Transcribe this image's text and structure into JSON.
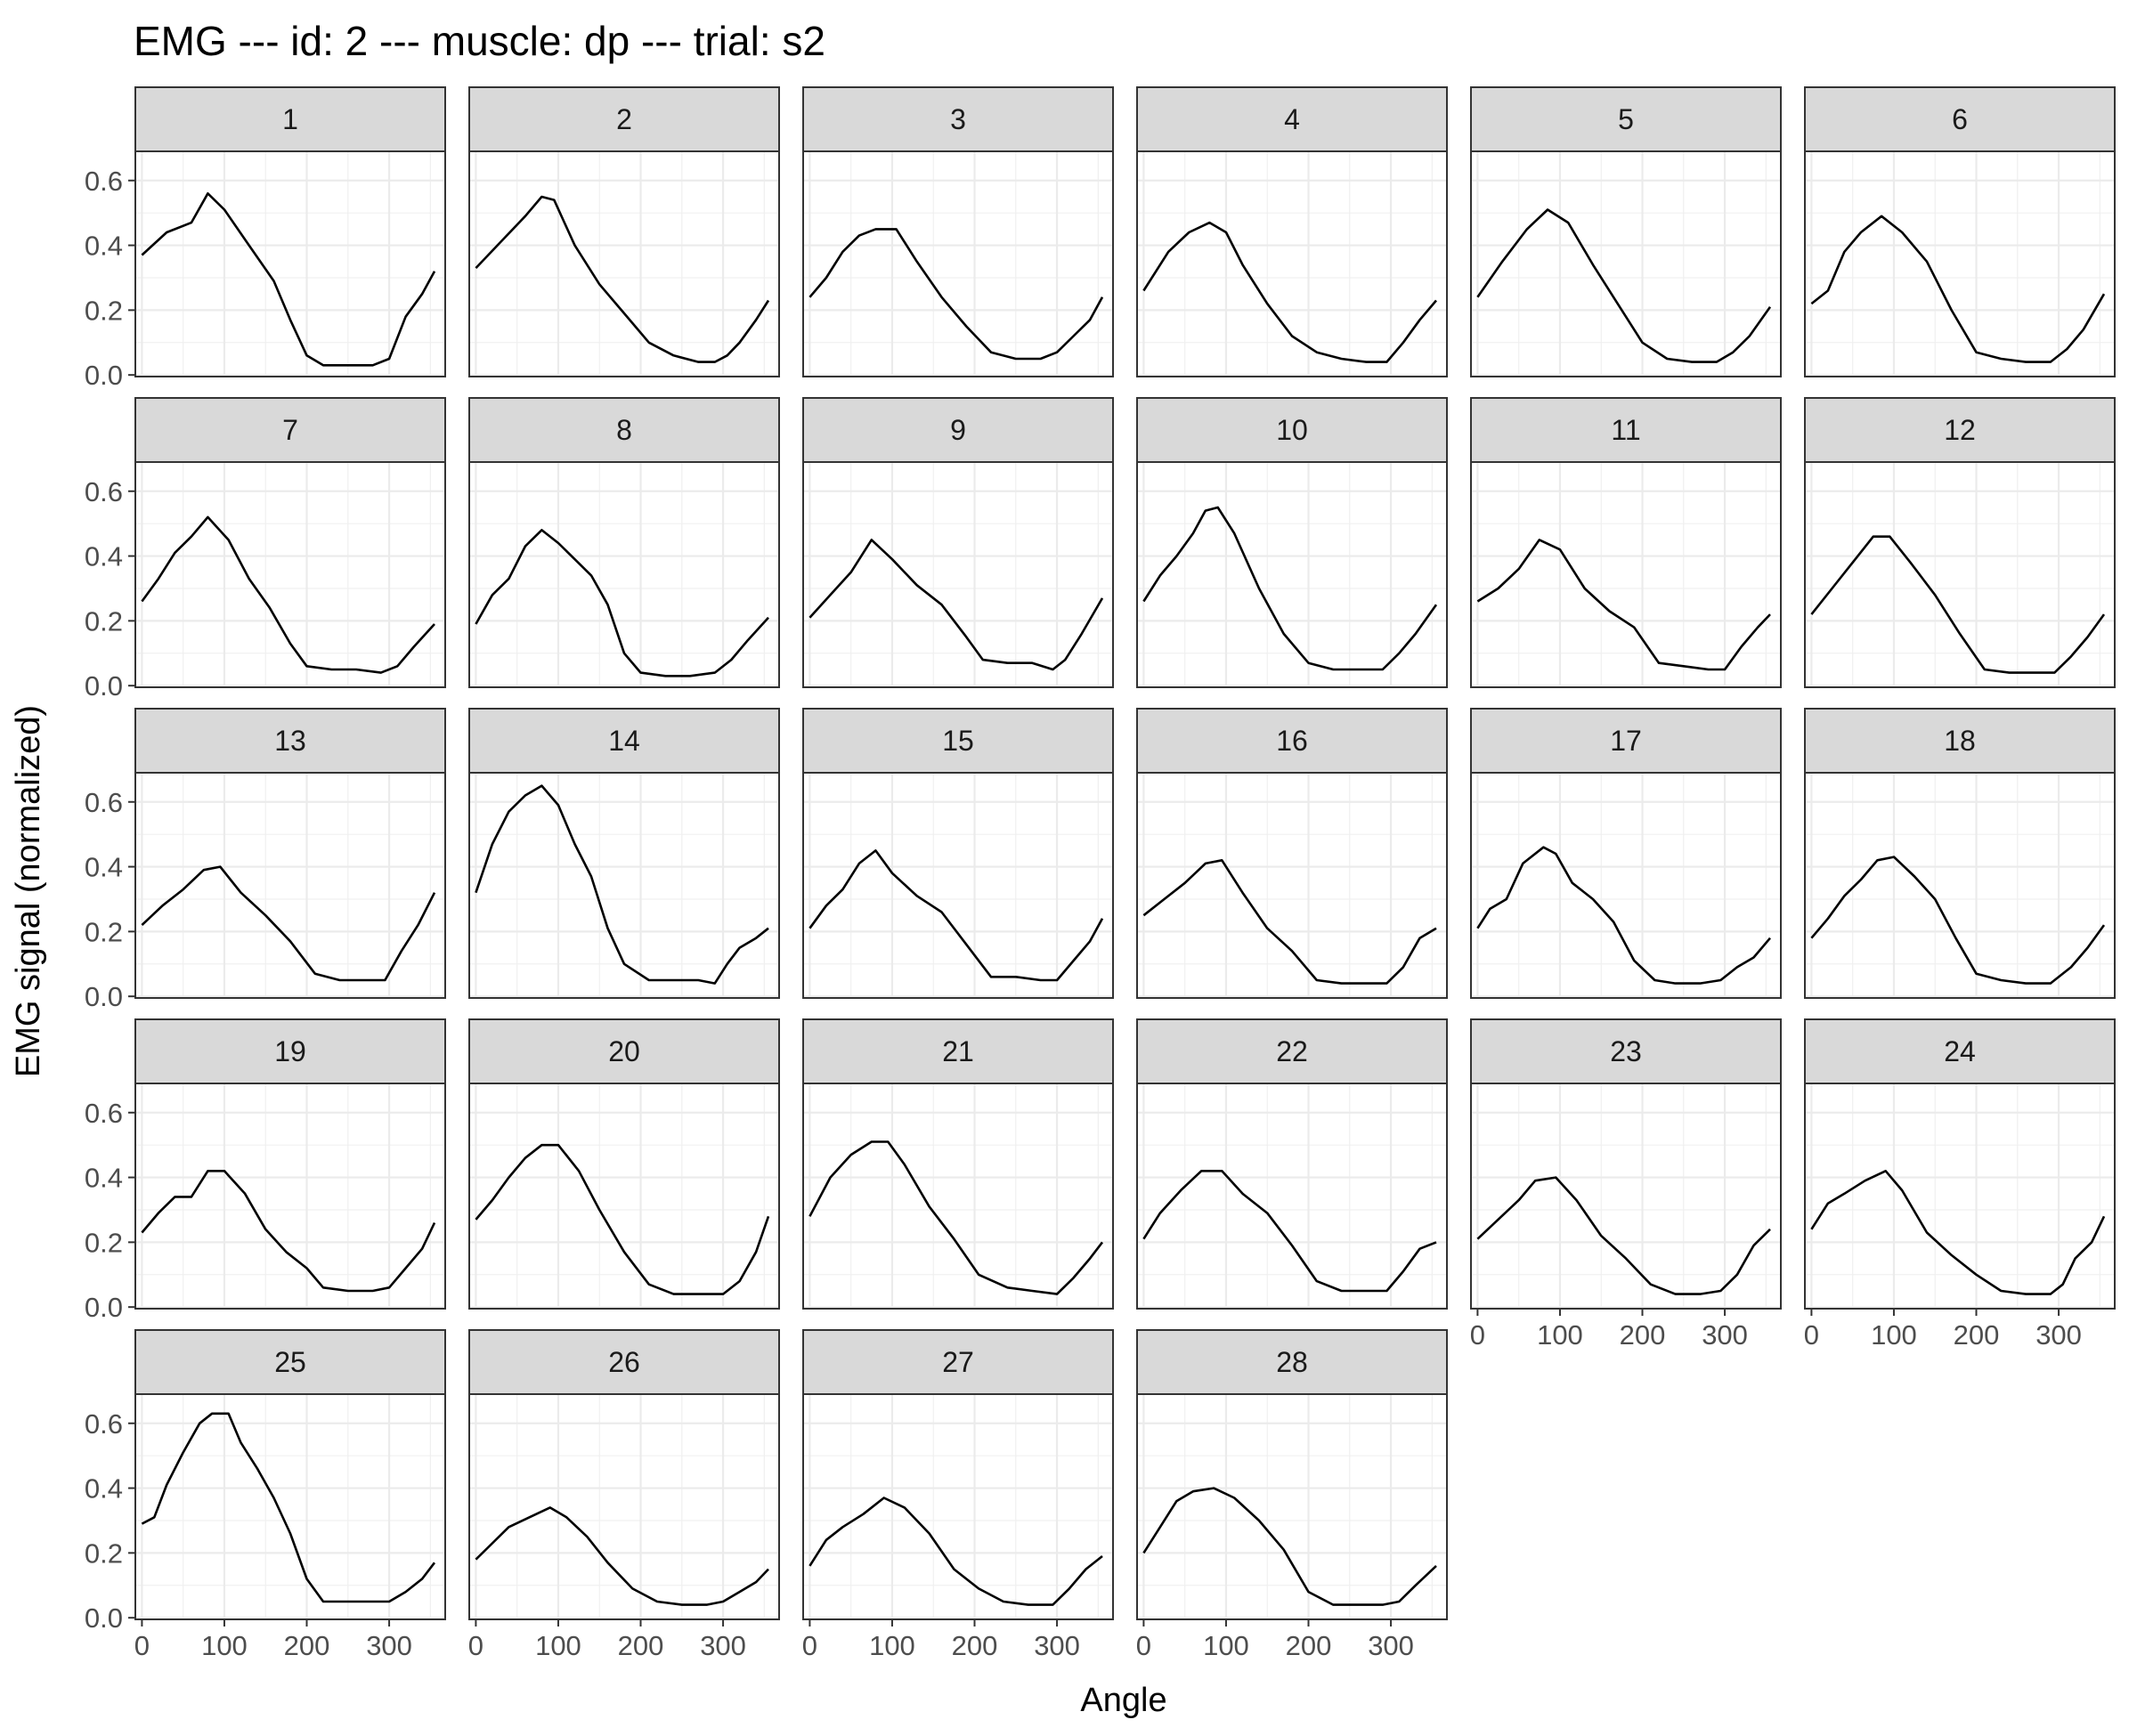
{
  "chart_data": {
    "type": "line",
    "title": "EMG --- id: 2 --- muscle: dp --- trial: s2",
    "xlabel": "Angle",
    "ylabel": "EMG signal (normalized)",
    "xlim": [
      -8,
      368
    ],
    "ylim": [
      -0.005,
      0.69
    ],
    "x_ticks": [
      0,
      100,
      200,
      300
    ],
    "y_ticks": [
      0.0,
      0.2,
      0.4,
      0.6
    ],
    "x_tick_labels": [
      "0",
      "100",
      "200",
      "300"
    ],
    "y_tick_labels": [
      "0.0",
      "0.2",
      "0.4",
      "0.6"
    ],
    "grid": true,
    "layout": "facet grid, 6 columns",
    "line_color": "#000000",
    "panels": [
      {
        "label": "1",
        "x": [
          0,
          30,
          60,
          80,
          100,
          130,
          160,
          180,
          200,
          220,
          240,
          260,
          280,
          300,
          320,
          340,
          355
        ],
        "y": [
          0.37,
          0.44,
          0.47,
          0.56,
          0.51,
          0.4,
          0.29,
          0.17,
          0.06,
          0.03,
          0.03,
          0.03,
          0.03,
          0.05,
          0.18,
          0.25,
          0.32
        ]
      },
      {
        "label": "2",
        "x": [
          0,
          30,
          60,
          80,
          95,
          120,
          150,
          180,
          210,
          240,
          270,
          290,
          305,
          320,
          340,
          355
        ],
        "y": [
          0.33,
          0.41,
          0.49,
          0.55,
          0.54,
          0.4,
          0.28,
          0.19,
          0.1,
          0.06,
          0.04,
          0.04,
          0.06,
          0.1,
          0.17,
          0.23
        ]
      },
      {
        "label": "3",
        "x": [
          0,
          20,
          40,
          60,
          80,
          105,
          130,
          160,
          190,
          220,
          250,
          280,
          300,
          320,
          340,
          355
        ],
        "y": [
          0.24,
          0.3,
          0.38,
          0.43,
          0.45,
          0.45,
          0.35,
          0.24,
          0.15,
          0.07,
          0.05,
          0.05,
          0.07,
          0.12,
          0.17,
          0.24
        ]
      },
      {
        "label": "4",
        "x": [
          0,
          30,
          55,
          80,
          100,
          120,
          150,
          180,
          210,
          240,
          270,
          295,
          315,
          335,
          355
        ],
        "y": [
          0.26,
          0.38,
          0.44,
          0.47,
          0.44,
          0.34,
          0.22,
          0.12,
          0.07,
          0.05,
          0.04,
          0.04,
          0.1,
          0.17,
          0.23
        ]
      },
      {
        "label": "5",
        "x": [
          0,
          30,
          60,
          85,
          110,
          140,
          170,
          200,
          230,
          260,
          290,
          310,
          330,
          355
        ],
        "y": [
          0.24,
          0.35,
          0.45,
          0.51,
          0.47,
          0.34,
          0.22,
          0.1,
          0.05,
          0.04,
          0.04,
          0.07,
          0.12,
          0.21
        ]
      },
      {
        "label": "6",
        "x": [
          0,
          20,
          40,
          60,
          85,
          110,
          140,
          170,
          200,
          230,
          260,
          290,
          310,
          330,
          355
        ],
        "y": [
          0.22,
          0.26,
          0.38,
          0.44,
          0.49,
          0.44,
          0.35,
          0.2,
          0.07,
          0.05,
          0.04,
          0.04,
          0.08,
          0.14,
          0.25
        ]
      },
      {
        "label": "7",
        "x": [
          0,
          20,
          40,
          60,
          80,
          105,
          130,
          155,
          180,
          200,
          230,
          260,
          290,
          310,
          330,
          355
        ],
        "y": [
          0.26,
          0.33,
          0.41,
          0.46,
          0.52,
          0.45,
          0.33,
          0.24,
          0.13,
          0.06,
          0.05,
          0.05,
          0.04,
          0.06,
          0.12,
          0.19
        ]
      },
      {
        "label": "8",
        "x": [
          0,
          20,
          40,
          60,
          80,
          100,
          120,
          140,
          160,
          180,
          200,
          230,
          260,
          290,
          310,
          330,
          355
        ],
        "y": [
          0.19,
          0.28,
          0.33,
          0.43,
          0.48,
          0.44,
          0.39,
          0.34,
          0.25,
          0.1,
          0.04,
          0.03,
          0.03,
          0.04,
          0.08,
          0.14,
          0.21
        ]
      },
      {
        "label": "9",
        "x": [
          0,
          25,
          50,
          75,
          100,
          130,
          160,
          190,
          210,
          240,
          270,
          295,
          310,
          330,
          355
        ],
        "y": [
          0.21,
          0.28,
          0.35,
          0.45,
          0.39,
          0.31,
          0.25,
          0.15,
          0.08,
          0.07,
          0.07,
          0.05,
          0.08,
          0.16,
          0.27
        ]
      },
      {
        "label": "10",
        "x": [
          0,
          20,
          40,
          60,
          75,
          90,
          110,
          140,
          170,
          200,
          230,
          260,
          290,
          310,
          330,
          355
        ],
        "y": [
          0.26,
          0.34,
          0.4,
          0.47,
          0.54,
          0.55,
          0.47,
          0.3,
          0.16,
          0.07,
          0.05,
          0.05,
          0.05,
          0.1,
          0.16,
          0.25
        ]
      },
      {
        "label": "11",
        "x": [
          0,
          25,
          50,
          75,
          100,
          130,
          160,
          190,
          220,
          250,
          280,
          300,
          320,
          340,
          355
        ],
        "y": [
          0.26,
          0.3,
          0.36,
          0.45,
          0.42,
          0.3,
          0.23,
          0.18,
          0.07,
          0.06,
          0.05,
          0.05,
          0.12,
          0.18,
          0.22
        ]
      },
      {
        "label": "12",
        "x": [
          0,
          25,
          50,
          75,
          95,
          120,
          150,
          180,
          210,
          240,
          270,
          295,
          315,
          335,
          355
        ],
        "y": [
          0.22,
          0.3,
          0.38,
          0.46,
          0.46,
          0.38,
          0.28,
          0.16,
          0.05,
          0.04,
          0.04,
          0.04,
          0.09,
          0.15,
          0.22
        ]
      },
      {
        "label": "13",
        "x": [
          0,
          25,
          50,
          75,
          95,
          120,
          150,
          180,
          210,
          240,
          270,
          295,
          315,
          335,
          355
        ],
        "y": [
          0.22,
          0.28,
          0.33,
          0.39,
          0.4,
          0.32,
          0.25,
          0.17,
          0.07,
          0.05,
          0.05,
          0.05,
          0.14,
          0.22,
          0.32
        ]
      },
      {
        "label": "14",
        "x": [
          0,
          20,
          40,
          60,
          80,
          100,
          120,
          140,
          160,
          180,
          210,
          240,
          270,
          290,
          305,
          320,
          340,
          355
        ],
        "y": [
          0.32,
          0.47,
          0.57,
          0.62,
          0.65,
          0.59,
          0.47,
          0.37,
          0.21,
          0.1,
          0.05,
          0.05,
          0.05,
          0.04,
          0.1,
          0.15,
          0.18,
          0.21
        ]
      },
      {
        "label": "15",
        "x": [
          0,
          20,
          40,
          60,
          80,
          100,
          130,
          160,
          190,
          220,
          250,
          280,
          300,
          320,
          340,
          355
        ],
        "y": [
          0.21,
          0.28,
          0.33,
          0.41,
          0.45,
          0.38,
          0.31,
          0.26,
          0.16,
          0.06,
          0.06,
          0.05,
          0.05,
          0.11,
          0.17,
          0.24
        ]
      },
      {
        "label": "16",
        "x": [
          0,
          25,
          50,
          75,
          95,
          120,
          150,
          180,
          210,
          240,
          270,
          295,
          315,
          335,
          355
        ],
        "y": [
          0.25,
          0.3,
          0.35,
          0.41,
          0.42,
          0.32,
          0.21,
          0.14,
          0.05,
          0.04,
          0.04,
          0.04,
          0.09,
          0.18,
          0.21
        ]
      },
      {
        "label": "17",
        "x": [
          0,
          15,
          35,
          55,
          80,
          95,
          115,
          140,
          165,
          190,
          215,
          240,
          270,
          295,
          315,
          335,
          355
        ],
        "y": [
          0.21,
          0.27,
          0.3,
          0.41,
          0.46,
          0.44,
          0.35,
          0.3,
          0.23,
          0.11,
          0.05,
          0.04,
          0.04,
          0.05,
          0.09,
          0.12,
          0.18
        ]
      },
      {
        "label": "18",
        "x": [
          0,
          20,
          40,
          60,
          80,
          100,
          125,
          150,
          175,
          200,
          230,
          260,
          290,
          315,
          335,
          355
        ],
        "y": [
          0.18,
          0.24,
          0.31,
          0.36,
          0.42,
          0.43,
          0.37,
          0.3,
          0.18,
          0.07,
          0.05,
          0.04,
          0.04,
          0.09,
          0.15,
          0.22
        ]
      },
      {
        "label": "19",
        "x": [
          0,
          20,
          40,
          60,
          80,
          100,
          125,
          150,
          175,
          200,
          220,
          250,
          280,
          300,
          320,
          340,
          355
        ],
        "y": [
          0.23,
          0.29,
          0.34,
          0.34,
          0.42,
          0.42,
          0.35,
          0.24,
          0.17,
          0.12,
          0.06,
          0.05,
          0.05,
          0.06,
          0.12,
          0.18,
          0.26
        ]
      },
      {
        "label": "20",
        "x": [
          0,
          20,
          40,
          60,
          80,
          100,
          125,
          150,
          180,
          210,
          240,
          270,
          300,
          320,
          340,
          355
        ],
        "y": [
          0.27,
          0.33,
          0.4,
          0.46,
          0.5,
          0.5,
          0.42,
          0.3,
          0.17,
          0.07,
          0.04,
          0.04,
          0.04,
          0.08,
          0.17,
          0.28
        ]
      },
      {
        "label": "21",
        "x": [
          0,
          25,
          50,
          75,
          95,
          115,
          145,
          175,
          205,
          240,
          270,
          300,
          320,
          340,
          355
        ],
        "y": [
          0.28,
          0.4,
          0.47,
          0.51,
          0.51,
          0.44,
          0.31,
          0.21,
          0.1,
          0.06,
          0.05,
          0.04,
          0.09,
          0.15,
          0.2
        ]
      },
      {
        "label": "22",
        "x": [
          0,
          20,
          45,
          70,
          95,
          120,
          150,
          180,
          210,
          240,
          270,
          295,
          315,
          335,
          355
        ],
        "y": [
          0.21,
          0.29,
          0.36,
          0.42,
          0.42,
          0.35,
          0.29,
          0.19,
          0.08,
          0.05,
          0.05,
          0.05,
          0.11,
          0.18,
          0.2
        ]
      },
      {
        "label": "23",
        "x": [
          0,
          25,
          50,
          70,
          95,
          120,
          150,
          180,
          210,
          240,
          270,
          295,
          315,
          335,
          355
        ],
        "y": [
          0.21,
          0.27,
          0.33,
          0.39,
          0.4,
          0.33,
          0.22,
          0.15,
          0.07,
          0.04,
          0.04,
          0.05,
          0.1,
          0.19,
          0.24
        ]
      },
      {
        "label": "24",
        "x": [
          0,
          20,
          40,
          65,
          90,
          110,
          140,
          170,
          200,
          230,
          260,
          290,
          305,
          320,
          340,
          355
        ],
        "y": [
          0.24,
          0.32,
          0.35,
          0.39,
          0.42,
          0.36,
          0.23,
          0.16,
          0.1,
          0.05,
          0.04,
          0.04,
          0.07,
          0.15,
          0.2,
          0.28
        ]
      },
      {
        "label": "25",
        "x": [
          0,
          15,
          30,
          50,
          70,
          85,
          105,
          120,
          140,
          160,
          180,
          200,
          220,
          250,
          280,
          300,
          320,
          340,
          355
        ],
        "y": [
          0.29,
          0.31,
          0.41,
          0.51,
          0.6,
          0.63,
          0.63,
          0.54,
          0.46,
          0.37,
          0.26,
          0.12,
          0.05,
          0.05,
          0.05,
          0.05,
          0.08,
          0.12,
          0.17
        ]
      },
      {
        "label": "26",
        "x": [
          0,
          20,
          40,
          65,
          90,
          110,
          135,
          160,
          190,
          220,
          250,
          280,
          300,
          320,
          340,
          355
        ],
        "y": [
          0.18,
          0.23,
          0.28,
          0.31,
          0.34,
          0.31,
          0.25,
          0.17,
          0.09,
          0.05,
          0.04,
          0.04,
          0.05,
          0.08,
          0.11,
          0.15
        ]
      },
      {
        "label": "27",
        "x": [
          0,
          20,
          40,
          65,
          90,
          115,
          145,
          175,
          205,
          235,
          265,
          295,
          315,
          335,
          355
        ],
        "y": [
          0.16,
          0.24,
          0.28,
          0.32,
          0.37,
          0.34,
          0.26,
          0.15,
          0.09,
          0.05,
          0.04,
          0.04,
          0.09,
          0.15,
          0.19
        ]
      },
      {
        "label": "28",
        "x": [
          0,
          20,
          40,
          60,
          85,
          110,
          140,
          170,
          200,
          230,
          260,
          290,
          310,
          330,
          355
        ],
        "y": [
          0.2,
          0.28,
          0.36,
          0.39,
          0.4,
          0.37,
          0.3,
          0.21,
          0.08,
          0.04,
          0.04,
          0.04,
          0.05,
          0.1,
          0.16
        ]
      }
    ]
  }
}
